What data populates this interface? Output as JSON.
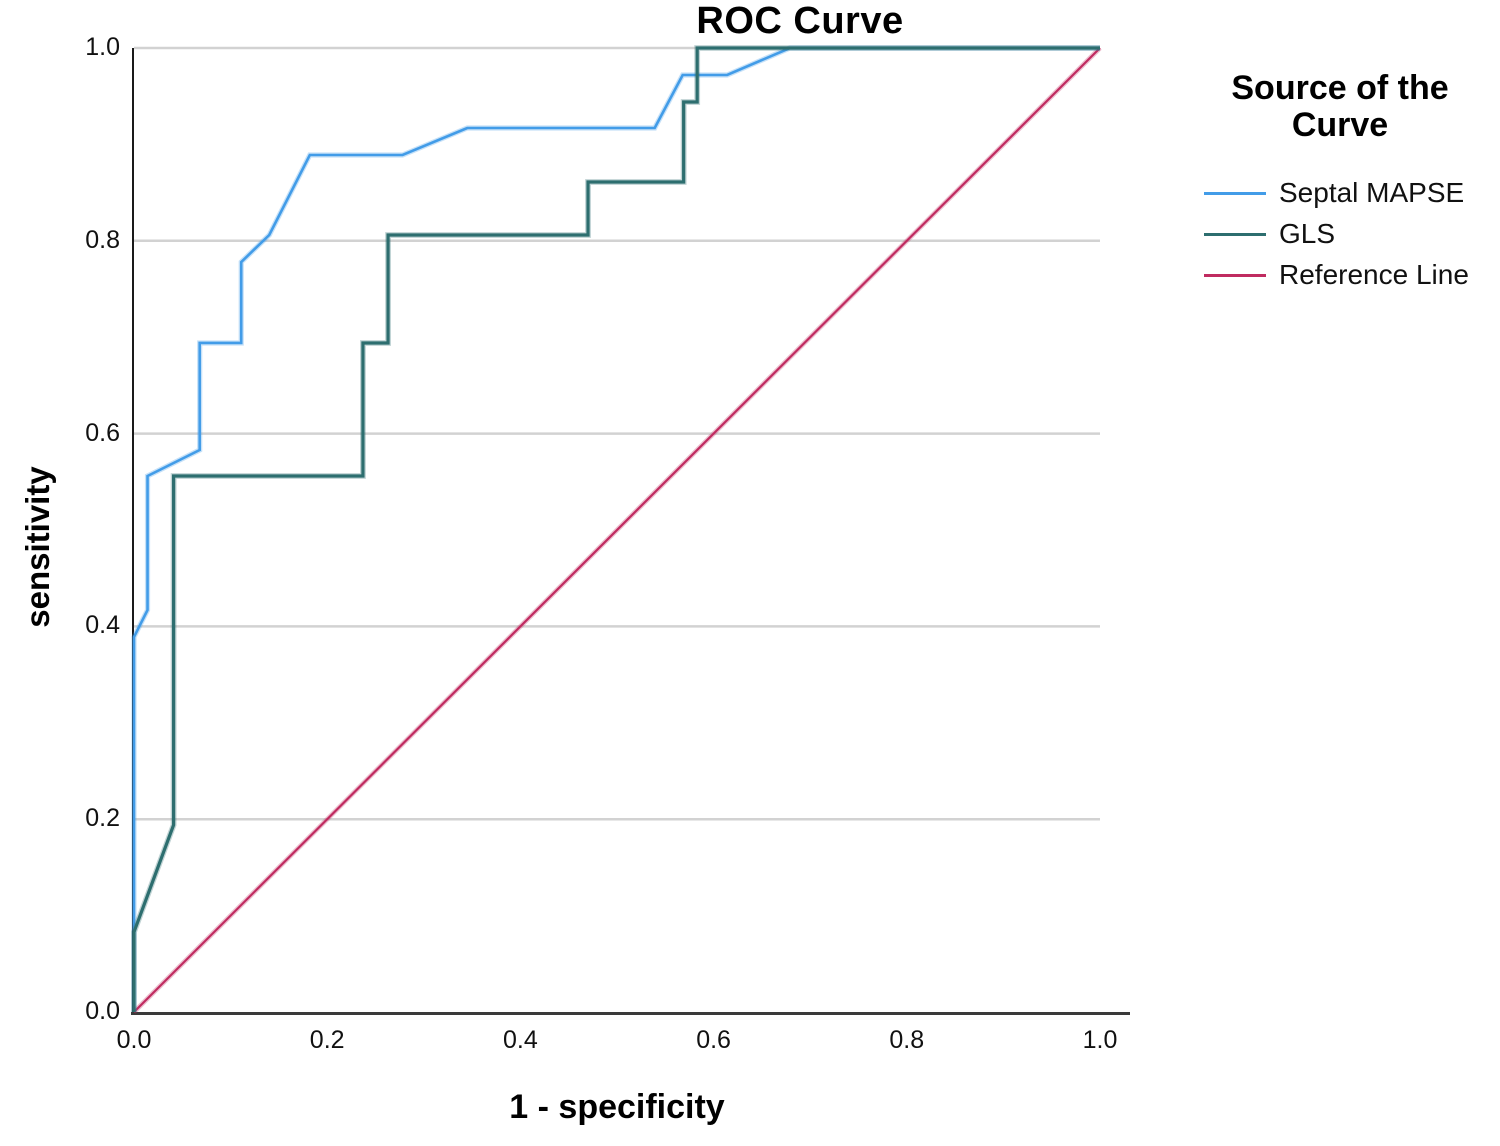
{
  "chart_data": {
    "type": "line",
    "title": "ROC Curve",
    "xlabel": "1 - specificity",
    "ylabel": "sensitivity",
    "xlim": [
      0,
      1
    ],
    "ylim": [
      0,
      1
    ],
    "xticks": [
      0.0,
      0.2,
      0.4,
      0.6,
      0.8,
      1.0
    ],
    "yticks": [
      0.0,
      0.2,
      0.4,
      0.6,
      0.8,
      1.0
    ],
    "xtick_labels": [
      "0.0",
      "0.2",
      "0.4",
      "0.6",
      "0.8",
      "1.0"
    ],
    "ytick_labels": [
      "0.0",
      "0.2",
      "0.4",
      "0.6",
      "0.8",
      "1.0"
    ],
    "grid": "horizontal-only",
    "gridline_color": "#d2d2d2",
    "axis_color": "#2b2b2b",
    "legend_title": "Source of the Curve",
    "legend_position": "right",
    "series": [
      {
        "name": "Septal MAPSE",
        "color": "#429ce8",
        "line_width": 2.6,
        "points": [
          [
            0,
            0
          ],
          [
            0,
            0.389
          ],
          [
            0.014,
            0.417
          ],
          [
            0.014,
            0.556
          ],
          [
            0.068,
            0.583
          ],
          [
            0.068,
            0.694
          ],
          [
            0.111,
            0.694
          ],
          [
            0.111,
            0.778
          ],
          [
            0.14,
            0.806
          ],
          [
            0.182,
            0.889
          ],
          [
            0.278,
            0.889
          ],
          [
            0.345,
            0.917
          ],
          [
            0.539,
            0.917
          ],
          [
            0.568,
            0.972
          ],
          [
            0.614,
            0.972
          ],
          [
            0.679,
            1.0
          ],
          [
            1.0,
            1.0
          ]
        ]
      },
      {
        "name": "GLS",
        "color": "#2d6e6f",
        "line_width": 3.2,
        "points": [
          [
            0,
            0
          ],
          [
            0,
            0.083
          ],
          [
            0.041,
            0.194
          ],
          [
            0.041,
            0.556
          ],
          [
            0.237,
            0.556
          ],
          [
            0.237,
            0.694
          ],
          [
            0.263,
            0.694
          ],
          [
            0.263,
            0.806
          ],
          [
            0.47,
            0.806
          ],
          [
            0.47,
            0.861
          ],
          [
            0.569,
            0.861
          ],
          [
            0.569,
            0.944
          ],
          [
            0.583,
            0.944
          ],
          [
            0.583,
            1.0
          ],
          [
            1.0,
            1.0
          ]
        ]
      },
      {
        "name": "Reference Line",
        "color": "#c02b60",
        "line_width": 2.2,
        "points": [
          [
            0,
            0
          ],
          [
            1.0,
            1.0
          ]
        ]
      }
    ]
  }
}
